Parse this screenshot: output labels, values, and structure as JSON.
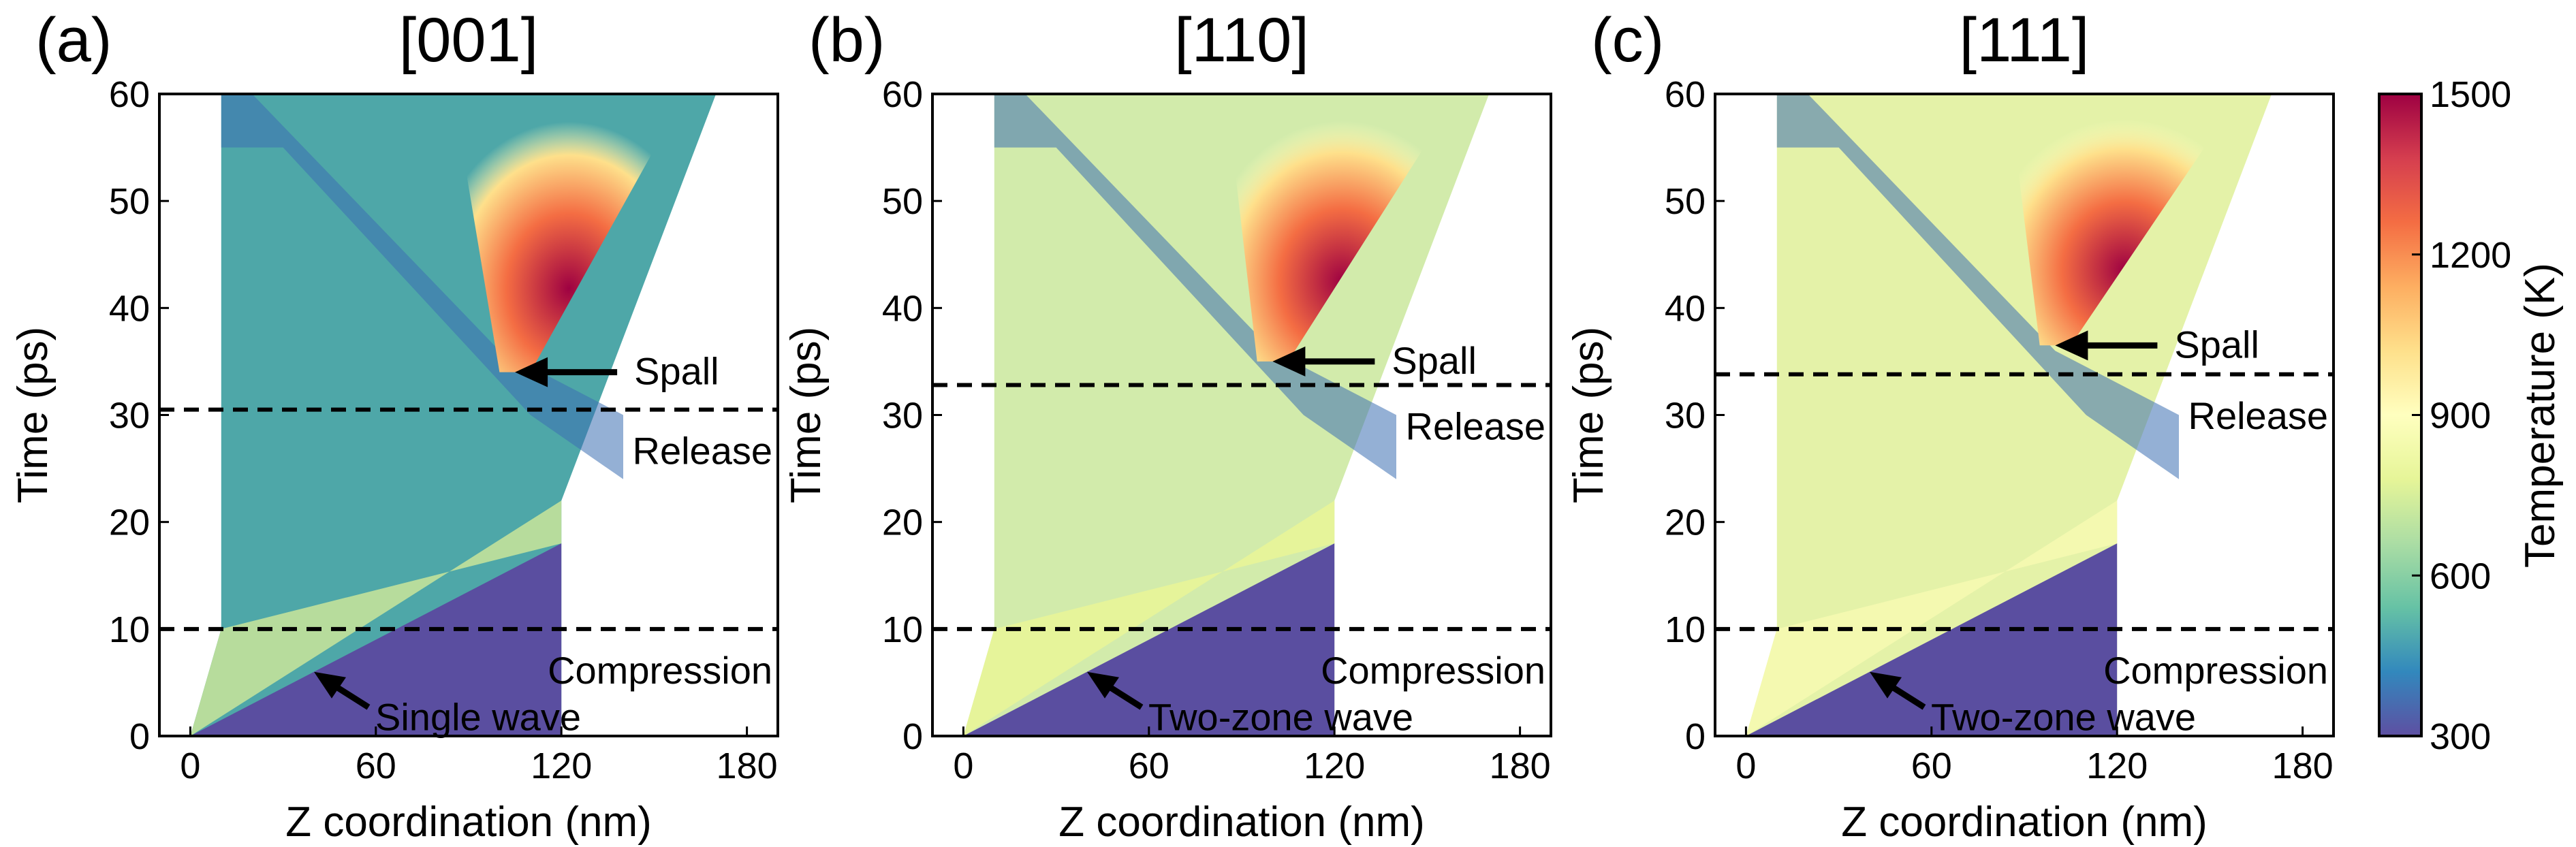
{
  "colorbar": {
    "label": "Temperature (K)",
    "min": 300,
    "max": 1500,
    "ticks": [
      "300",
      "600",
      "900",
      "1200",
      "1500"
    ],
    "colors": [
      "#5e4fa2",
      "#3288bd",
      "#66c2a5",
      "#abdda4",
      "#e6f598",
      "#ffffbf",
      "#fee08b",
      "#fdae61",
      "#f46d43",
      "#d53e4f",
      "#9e0142"
    ]
  },
  "chart_data": [
    {
      "type": "heatmap",
      "panel": "(a)",
      "title": "[001]",
      "xlabel": "Z coordination (nm)",
      "ylabel": "Time (ps)",
      "xlim": [
        -10,
        190
      ],
      "ylim": [
        0,
        60
      ],
      "xticks": [
        "0",
        "60",
        "120",
        "180"
      ],
      "yticks": [
        "0",
        "10",
        "20",
        "30",
        "40",
        "50",
        "60"
      ],
      "compression_time": 10,
      "release_time": 30.5,
      "labels": {
        "compression": "Compression",
        "release": "Release",
        "spall": "Spall",
        "wave": "Single wave"
      },
      "spall_point": [
        105,
        34
      ],
      "colors": {
        "base": "#4ea7a8",
        "slab": "#5a4ea0",
        "front": "#b7dc9c",
        "cold": "#3c6fb2"
      }
    },
    {
      "type": "heatmap",
      "panel": "(b)",
      "title": "[110]",
      "xlabel": "Z coordination (nm)",
      "ylabel": "Time (ps)",
      "xlim": [
        -10,
        190
      ],
      "ylim": [
        0,
        60
      ],
      "xticks": [
        "0",
        "60",
        "120",
        "180"
      ],
      "yticks": [
        "0",
        "10",
        "20",
        "30",
        "40",
        "50",
        "60"
      ],
      "compression_time": 10,
      "release_time": 32.8,
      "labels": {
        "compression": "Compression",
        "release": "Release",
        "spall": "Spall",
        "wave": "Two-zone wave"
      },
      "spall_point": [
        100,
        35
      ],
      "colors": {
        "base": "#d2ebab",
        "slab": "#5a4ea0",
        "front": "#e6f49a",
        "cold": "#3c6fb2"
      }
    },
    {
      "type": "heatmap",
      "panel": "(c)",
      "title": "[111]",
      "xlabel": "Z coordination (nm)",
      "ylabel": "Time (ps)",
      "xlim": [
        -10,
        190
      ],
      "ylim": [
        0,
        60
      ],
      "xticks": [
        "0",
        "60",
        "120",
        "180"
      ],
      "yticks": [
        "0",
        "10",
        "20",
        "30",
        "40",
        "50",
        "60"
      ],
      "compression_time": 10,
      "release_time": 33.8,
      "labels": {
        "compression": "Compression",
        "release": "Release",
        "spall": "Spall",
        "wave": "Two-zone wave"
      },
      "spall_point": [
        100,
        36.5
      ],
      "colors": {
        "base": "#e4f2a8",
        "slab": "#5a4ea0",
        "front": "#f4f9b0",
        "cold": "#3c6fb2"
      }
    }
  ]
}
